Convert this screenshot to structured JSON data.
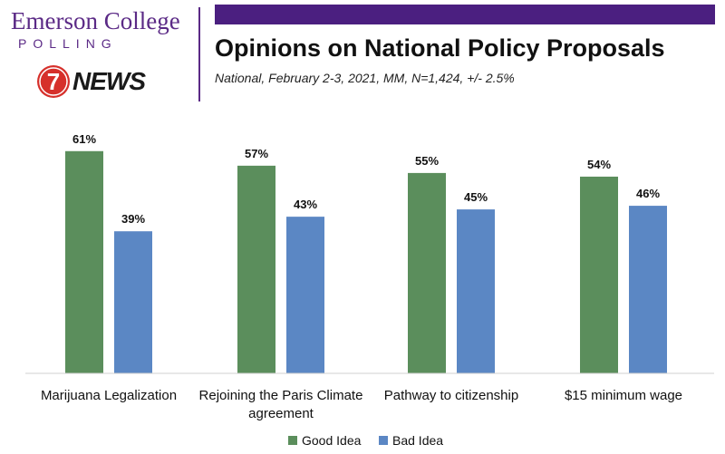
{
  "brand": {
    "name_line1": "Emerson College",
    "name_line2": "POLLING",
    "news_number": "7",
    "news_label": "NEWS"
  },
  "title": "Opinions on National Policy Proposals",
  "subtitle": "National, February 2-3, 2021, MM, N=1,424, +/- 2.5%",
  "colors": {
    "accent": "#4b1f80",
    "brand_text": "#5b2a86",
    "good": "#5b8e5c",
    "bad": "#5b87c4",
    "news_red": "#d6302b"
  },
  "chart_data": {
    "type": "bar",
    "categories": [
      [
        "Marijuana Legalization"
      ],
      [
        "Rejoining the Paris Climate",
        "agreement"
      ],
      [
        "Pathway to citizenship"
      ],
      [
        "$15 minimum wage"
      ]
    ],
    "series": [
      {
        "name": "Good Idea",
        "values": [
          61,
          57,
          55,
          54
        ],
        "labels": [
          "61%",
          "57%",
          "55%",
          "54%"
        ],
        "color": "#5b8e5c"
      },
      {
        "name": "Bad Idea",
        "values": [
          39,
          43,
          45,
          46
        ],
        "labels": [
          "39%",
          "43%",
          "45%",
          "46%"
        ],
        "color": "#5b87c4"
      }
    ],
    "ylim": [
      0,
      70
    ],
    "grid": false,
    "legend": "bottom"
  }
}
